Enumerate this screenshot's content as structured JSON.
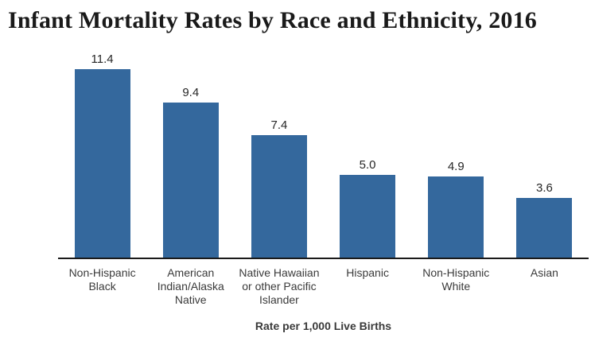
{
  "title": "Infant Mortality Rates by Race and Ethnicity, 2016",
  "chart_data": {
    "type": "bar",
    "title": "Infant Mortality Rates by Race and Ethnicity, 2016",
    "categories": [
      "Non-Hispanic Black",
      "American Indian/Alaska Native",
      "Native Hawaiian or other Pacific Islander",
      "Hispanic",
      "Non-Hispanic White",
      "Asian"
    ],
    "category_label_lines": [
      [
        "Non-Hispanic",
        "Black"
      ],
      [
        "American",
        "Indian/Alaska",
        "Native"
      ],
      [
        "Native Hawaiian",
        "or other Pacific",
        "Islander"
      ],
      [
        "Hispanic"
      ],
      [
        "Non-Hispanic",
        "White"
      ],
      [
        "Asian"
      ]
    ],
    "values": [
      11.4,
      9.4,
      7.4,
      5.0,
      4.9,
      3.6
    ],
    "value_labels": [
      "11.4",
      "9.4",
      "7.4",
      "5.0",
      "4.9",
      "3.6"
    ],
    "xlabel": "Rate per 1,000 Live Births",
    "ylabel": "",
    "ylim": [
      0,
      12
    ],
    "grid": false,
    "legend": false,
    "bar_color": "#34689d",
    "axis_line_color": "#1a1a1a",
    "title_color": "#1a1a1a",
    "label_color": "#3a3a3a"
  }
}
